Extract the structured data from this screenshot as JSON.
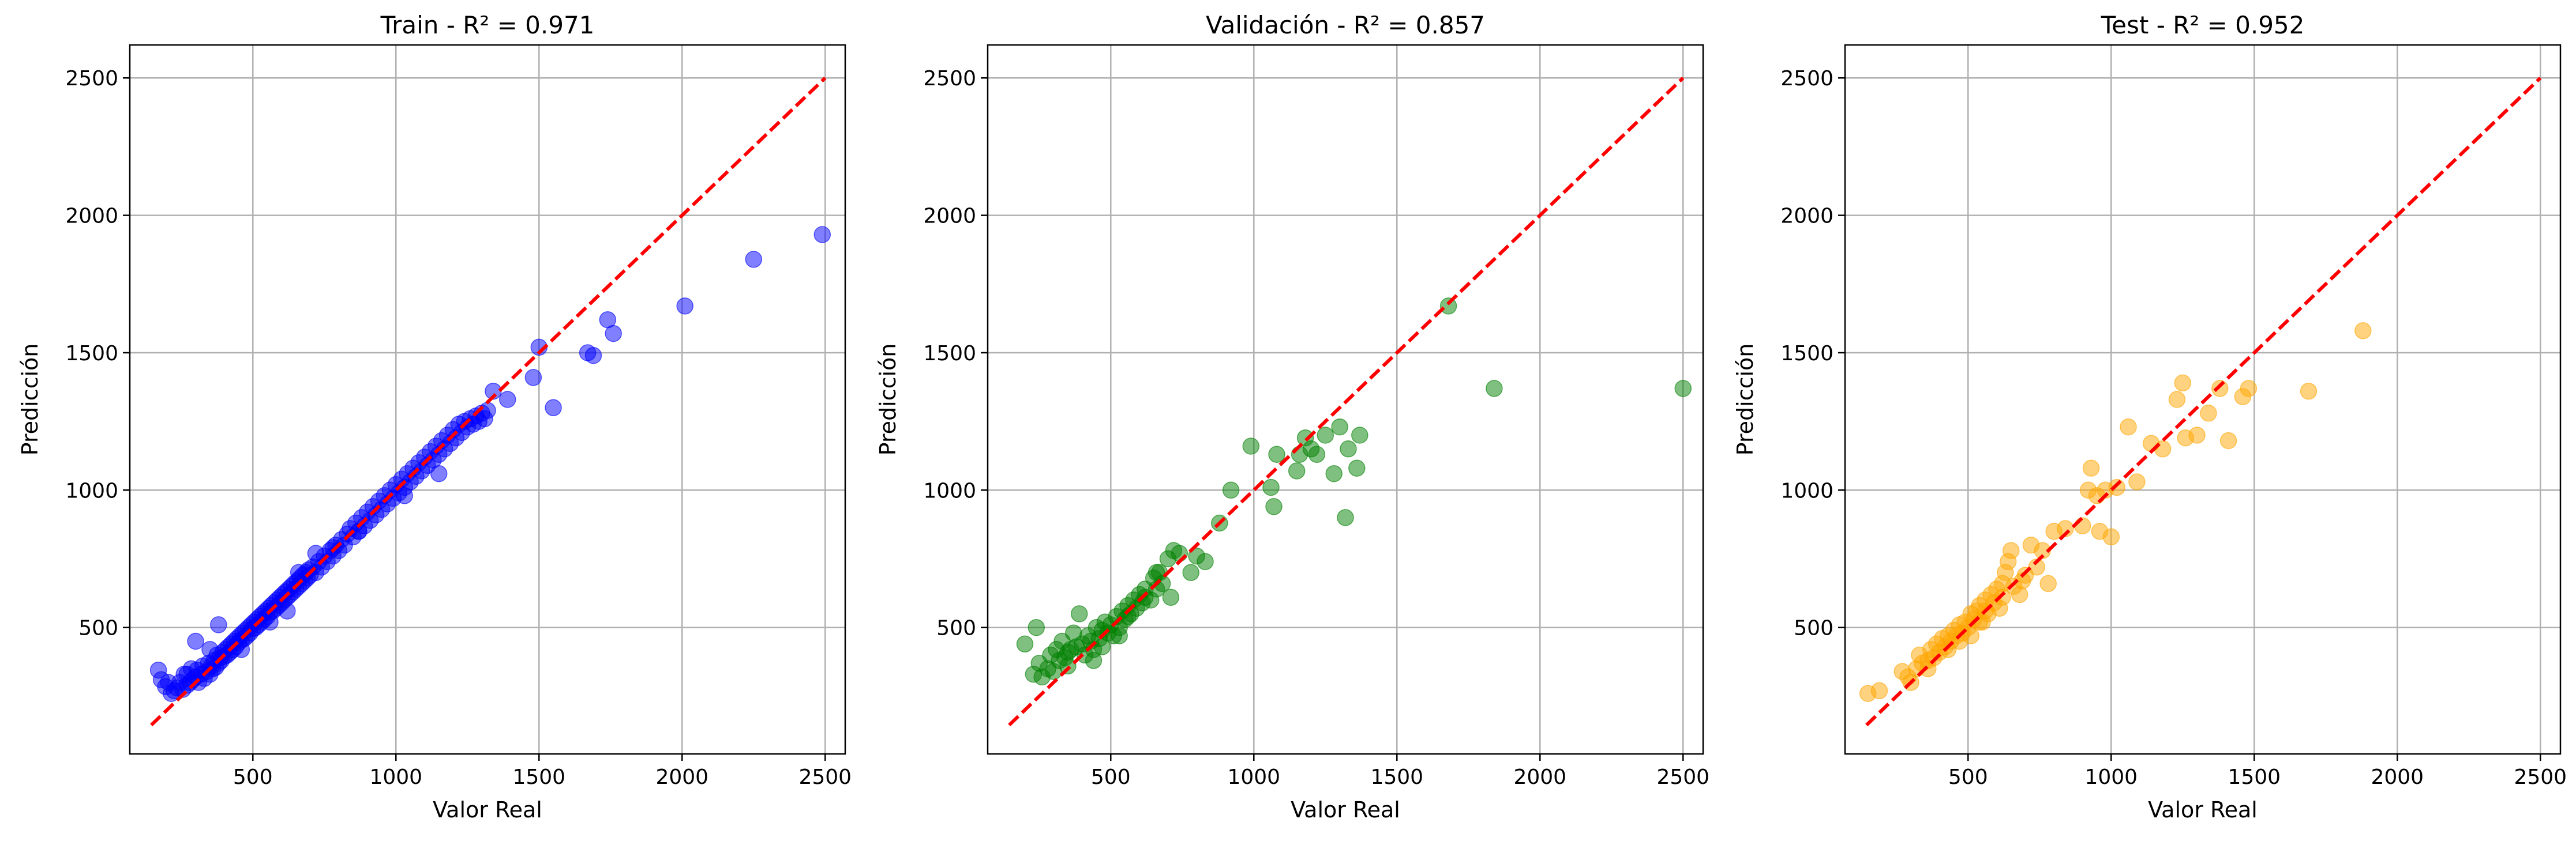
{
  "chart_data": [
    {
      "type": "scatter",
      "title": "Train - R² = 0.971",
      "xlabel": "Valor Real",
      "ylabel": "Predicción",
      "xlim": [
        70,
        2570
      ],
      "ylim": [
        40,
        2620
      ],
      "xticks": [
        500,
        1000,
        1500,
        2000,
        2500
      ],
      "yticks": [
        500,
        1000,
        1500,
        2000,
        2500
      ],
      "grid": true,
      "marker_color": "#0000ff",
      "marker_alpha": 0.5,
      "reference_line": {
        "from": [
          145,
          145
        ],
        "to": [
          2500,
          2500
        ],
        "color": "#ff0000",
        "style": "dashed"
      },
      "points": [
        [
          170,
          345
        ],
        [
          180,
          310
        ],
        [
          195,
          285
        ],
        [
          205,
          300
        ],
        [
          215,
          260
        ],
        [
          225,
          270
        ],
        [
          235,
          280
        ],
        [
          245,
          300
        ],
        [
          255,
          275
        ],
        [
          260,
          330
        ],
        [
          270,
          290
        ],
        [
          280,
          300
        ],
        [
          285,
          350
        ],
        [
          290,
          310
        ],
        [
          300,
          320
        ],
        [
          305,
          345
        ],
        [
          310,
          300
        ],
        [
          320,
          330
        ],
        [
          325,
          360
        ],
        [
          330,
          315
        ],
        [
          340,
          340
        ],
        [
          345,
          370
        ],
        [
          350,
          330
        ],
        [
          355,
          360
        ],
        [
          360,
          350
        ],
        [
          365,
          380
        ],
        [
          370,
          355
        ],
        [
          375,
          400
        ],
        [
          380,
          370
        ],
        [
          385,
          390
        ],
        [
          390,
          380
        ],
        [
          395,
          410
        ],
        [
          400,
          395
        ],
        [
          405,
          420
        ],
        [
          410,
          400
        ],
        [
          415,
          430
        ],
        [
          420,
          410
        ],
        [
          425,
          440
        ],
        [
          430,
          420
        ],
        [
          435,
          450
        ],
        [
          440,
          430
        ],
        [
          445,
          460
        ],
        [
          450,
          445
        ],
        [
          455,
          470
        ],
        [
          460,
          455
        ],
        [
          465,
          480
        ],
        [
          470,
          460
        ],
        [
          475,
          490
        ],
        [
          480,
          470
        ],
        [
          485,
          500
        ],
        [
          490,
          480
        ],
        [
          495,
          510
        ],
        [
          500,
          495
        ],
        [
          505,
          520
        ],
        [
          510,
          500
        ],
        [
          515,
          530
        ],
        [
          520,
          510
        ],
        [
          525,
          540
        ],
        [
          530,
          520
        ],
        [
          535,
          550
        ],
        [
          540,
          530
        ],
        [
          545,
          560
        ],
        [
          550,
          540
        ],
        [
          555,
          570
        ],
        [
          560,
          555
        ],
        [
          565,
          580
        ],
        [
          570,
          560
        ],
        [
          575,
          590
        ],
        [
          580,
          570
        ],
        [
          585,
          600
        ],
        [
          590,
          580
        ],
        [
          595,
          610
        ],
        [
          600,
          590
        ],
        [
          605,
          620
        ],
        [
          610,
          600
        ],
        [
          615,
          630
        ],
        [
          620,
          610
        ],
        [
          625,
          640
        ],
        [
          630,
          620
        ],
        [
          635,
          650
        ],
        [
          640,
          630
        ],
        [
          645,
          660
        ],
        [
          650,
          640
        ],
        [
          655,
          670
        ],
        [
          660,
          650
        ],
        [
          665,
          680
        ],
        [
          670,
          660
        ],
        [
          675,
          690
        ],
        [
          680,
          670
        ],
        [
          685,
          700
        ],
        [
          690,
          680
        ],
        [
          695,
          710
        ],
        [
          700,
          690
        ],
        [
          710,
          720
        ],
        [
          720,
          700
        ],
        [
          730,
          740
        ],
        [
          740,
          720
        ],
        [
          750,
          760
        ],
        [
          760,
          740
        ],
        [
          770,
          780
        ],
        [
          780,
          760
        ],
        [
          790,
          800
        ],
        [
          800,
          780
        ],
        [
          810,
          820
        ],
        [
          820,
          800
        ],
        [
          830,
          840
        ],
        [
          840,
          860
        ],
        [
          850,
          830
        ],
        [
          860,
          880
        ],
        [
          870,
          850
        ],
        [
          880,
          900
        ],
        [
          890,
          870
        ],
        [
          900,
          920
        ],
        [
          910,
          890
        ],
        [
          920,
          940
        ],
        [
          930,
          910
        ],
        [
          940,
          960
        ],
        [
          950,
          930
        ],
        [
          960,
          980
        ],
        [
          970,
          950
        ],
        [
          980,
          1000
        ],
        [
          990,
          970
        ],
        [
          1000,
          1020
        ],
        [
          1010,
          990
        ],
        [
          1020,
          1040
        ],
        [
          1030,
          1010
        ],
        [
          1040,
          1060
        ],
        [
          1050,
          1030
        ],
        [
          1060,
          1080
        ],
        [
          1070,
          1050
        ],
        [
          1080,
          1100
        ],
        [
          1090,
          1070
        ],
        [
          1100,
          1120
        ],
        [
          1110,
          1090
        ],
        [
          1120,
          1140
        ],
        [
          1130,
          1110
        ],
        [
          1140,
          1160
        ],
        [
          1150,
          1130
        ],
        [
          1160,
          1180
        ],
        [
          1170,
          1150
        ],
        [
          1180,
          1200
        ],
        [
          1190,
          1170
        ],
        [
          1200,
          1220
        ],
        [
          1210,
          1190
        ],
        [
          1220,
          1240
        ],
        [
          1230,
          1210
        ],
        [
          1240,
          1250
        ],
        [
          1250,
          1230
        ],
        [
          1260,
          1260
        ],
        [
          1270,
          1240
        ],
        [
          1280,
          1270
        ],
        [
          1290,
          1250
        ],
        [
          1300,
          1280
        ],
        [
          1310,
          1260
        ],
        [
          1320,
          1290
        ],
        [
          1340,
          1360
        ],
        [
          1390,
          1330
        ],
        [
          1480,
          1410
        ],
        [
          1500,
          1520
        ],
        [
          1550,
          1300
        ],
        [
          1670,
          1500
        ],
        [
          1690,
          1490
        ],
        [
          1740,
          1620
        ],
        [
          1760,
          1570
        ],
        [
          2010,
          1670
        ],
        [
          2250,
          1840
        ],
        [
          2490,
          1930
        ],
        [
          300,
          450
        ],
        [
          380,
          510
        ],
        [
          620,
          560
        ],
        [
          720,
          770
        ],
        [
          870,
          850
        ],
        [
          1030,
          980
        ],
        [
          1150,
          1060
        ],
        [
          270,
          330
        ],
        [
          350,
          420
        ],
        [
          460,
          420
        ],
        [
          560,
          520
        ],
        [
          660,
          700
        ],
        [
          780,
          790
        ]
      ]
    },
    {
      "type": "scatter",
      "title": "Validación - R² = 0.857",
      "xlabel": "Valor Real",
      "ylabel": "Predicción",
      "xlim": [
        70,
        2570
      ],
      "ylim": [
        40,
        2620
      ],
      "xticks": [
        500,
        1000,
        1500,
        2000,
        2500
      ],
      "yticks": [
        500,
        1000,
        1500,
        2000,
        2500
      ],
      "grid": true,
      "marker_color": "#008000",
      "marker_alpha": 0.5,
      "reference_line": {
        "from": [
          145,
          145
        ],
        "to": [
          2500,
          2500
        ],
        "color": "#ff0000",
        "style": "dashed"
      },
      "points": [
        [
          200,
          440
        ],
        [
          230,
          330
        ],
        [
          240,
          500
        ],
        [
          250,
          370
        ],
        [
          260,
          320
        ],
        [
          280,
          350
        ],
        [
          290,
          400
        ],
        [
          300,
          340
        ],
        [
          310,
          420
        ],
        [
          320,
          380
        ],
        [
          330,
          450
        ],
        [
          340,
          390
        ],
        [
          350,
          360
        ],
        [
          360,
          420
        ],
        [
          370,
          480
        ],
        [
          380,
          430
        ],
        [
          390,
          550
        ],
        [
          400,
          440
        ],
        [
          410,
          400
        ],
        [
          420,
          470
        ],
        [
          430,
          450
        ],
        [
          440,
          420
        ],
        [
          450,
          500
        ],
        [
          460,
          460
        ],
        [
          470,
          430
        ],
        [
          480,
          520
        ],
        [
          490,
          480
        ],
        [
          500,
          510
        ],
        [
          510,
          470
        ],
        [
          520,
          540
        ],
        [
          530,
          500
        ],
        [
          540,
          560
        ],
        [
          550,
          530
        ],
        [
          560,
          580
        ],
        [
          570,
          550
        ],
        [
          580,
          600
        ],
        [
          590,
          570
        ],
        [
          600,
          620
        ],
        [
          610,
          590
        ],
        [
          620,
          640
        ],
        [
          640,
          600
        ],
        [
          650,
          680
        ],
        [
          660,
          640
        ],
        [
          670,
          700
        ],
        [
          680,
          660
        ],
        [
          700,
          750
        ],
        [
          710,
          610
        ],
        [
          720,
          780
        ],
        [
          740,
          770
        ],
        [
          780,
          700
        ],
        [
          800,
          760
        ],
        [
          830,
          740
        ],
        [
          880,
          880
        ],
        [
          920,
          1000
        ],
        [
          990,
          1160
        ],
        [
          1060,
          1010
        ],
        [
          1070,
          940
        ],
        [
          1080,
          1130
        ],
        [
          1150,
          1070
        ],
        [
          1160,
          1130
        ],
        [
          1180,
          1190
        ],
        [
          1200,
          1150
        ],
        [
          1220,
          1130
        ],
        [
          1250,
          1200
        ],
        [
          1280,
          1060
        ],
        [
          1300,
          1230
        ],
        [
          1320,
          900
        ],
        [
          1330,
          1150
        ],
        [
          1360,
          1080
        ],
        [
          1370,
          1200
        ],
        [
          1680,
          1670
        ],
        [
          1840,
          1370
        ],
        [
          2500,
          1370
        ],
        [
          560,
          540
        ],
        [
          620,
          610
        ],
        [
          350,
          410
        ],
        [
          470,
          490
        ],
        [
          660,
          700
        ],
        [
          530,
          470
        ],
        [
          440,
          380
        ]
      ]
    },
    {
      "type": "scatter",
      "title": "Test - R² = 0.952",
      "xlabel": "Valor Real",
      "ylabel": "Predicción",
      "xlim": [
        70,
        2570
      ],
      "ylim": [
        40,
        2620
      ],
      "xticks": [
        500,
        1000,
        1500,
        2000,
        2500
      ],
      "yticks": [
        500,
        1000,
        1500,
        2000,
        2500
      ],
      "grid": true,
      "marker_color": "#ffa500",
      "marker_alpha": 0.5,
      "reference_line": {
        "from": [
          145,
          145
        ],
        "to": [
          2500,
          2500
        ],
        "color": "#ff0000",
        "style": "dashed"
      },
      "points": [
        [
          150,
          260
        ],
        [
          190,
          270
        ],
        [
          270,
          340
        ],
        [
          290,
          320
        ],
        [
          300,
          300
        ],
        [
          320,
          350
        ],
        [
          330,
          400
        ],
        [
          340,
          370
        ],
        [
          360,
          380
        ],
        [
          370,
          420
        ],
        [
          380,
          390
        ],
        [
          390,
          440
        ],
        [
          400,
          410
        ],
        [
          410,
          460
        ],
        [
          420,
          430
        ],
        [
          430,
          470
        ],
        [
          440,
          450
        ],
        [
          450,
          490
        ],
        [
          460,
          470
        ],
        [
          470,
          510
        ],
        [
          480,
          480
        ],
        [
          490,
          520
        ],
        [
          500,
          500
        ],
        [
          510,
          550
        ],
        [
          520,
          530
        ],
        [
          530,
          560
        ],
        [
          540,
          580
        ],
        [
          550,
          520
        ],
        [
          560,
          600
        ],
        [
          570,
          550
        ],
        [
          580,
          620
        ],
        [
          590,
          590
        ],
        [
          600,
          640
        ],
        [
          610,
          570
        ],
        [
          620,
          660
        ],
        [
          630,
          700
        ],
        [
          640,
          740
        ],
        [
          650,
          780
        ],
        [
          660,
          650
        ],
        [
          680,
          620
        ],
        [
          700,
          690
        ],
        [
          720,
          800
        ],
        [
          740,
          720
        ],
        [
          760,
          780
        ],
        [
          780,
          660
        ],
        [
          800,
          850
        ],
        [
          840,
          860
        ],
        [
          900,
          870
        ],
        [
          920,
          1000
        ],
        [
          930,
          1080
        ],
        [
          950,
          980
        ],
        [
          960,
          850
        ],
        [
          980,
          1000
        ],
        [
          1000,
          830
        ],
        [
          1020,
          1010
        ],
        [
          1060,
          1230
        ],
        [
          1090,
          1030
        ],
        [
          1140,
          1170
        ],
        [
          1180,
          1150
        ],
        [
          1230,
          1330
        ],
        [
          1250,
          1390
        ],
        [
          1260,
          1190
        ],
        [
          1300,
          1200
        ],
        [
          1340,
          1280
        ],
        [
          1380,
          1370
        ],
        [
          1410,
          1180
        ],
        [
          1460,
          1340
        ],
        [
          1480,
          1370
        ],
        [
          1690,
          1360
        ],
        [
          1880,
          1580
        ],
        [
          360,
          350
        ],
        [
          430,
          420
        ],
        [
          510,
          470
        ],
        [
          560,
          560
        ],
        [
          620,
          610
        ],
        [
          470,
          450
        ],
        [
          690,
          670
        ],
        [
          540,
          520
        ]
      ]
    }
  ]
}
